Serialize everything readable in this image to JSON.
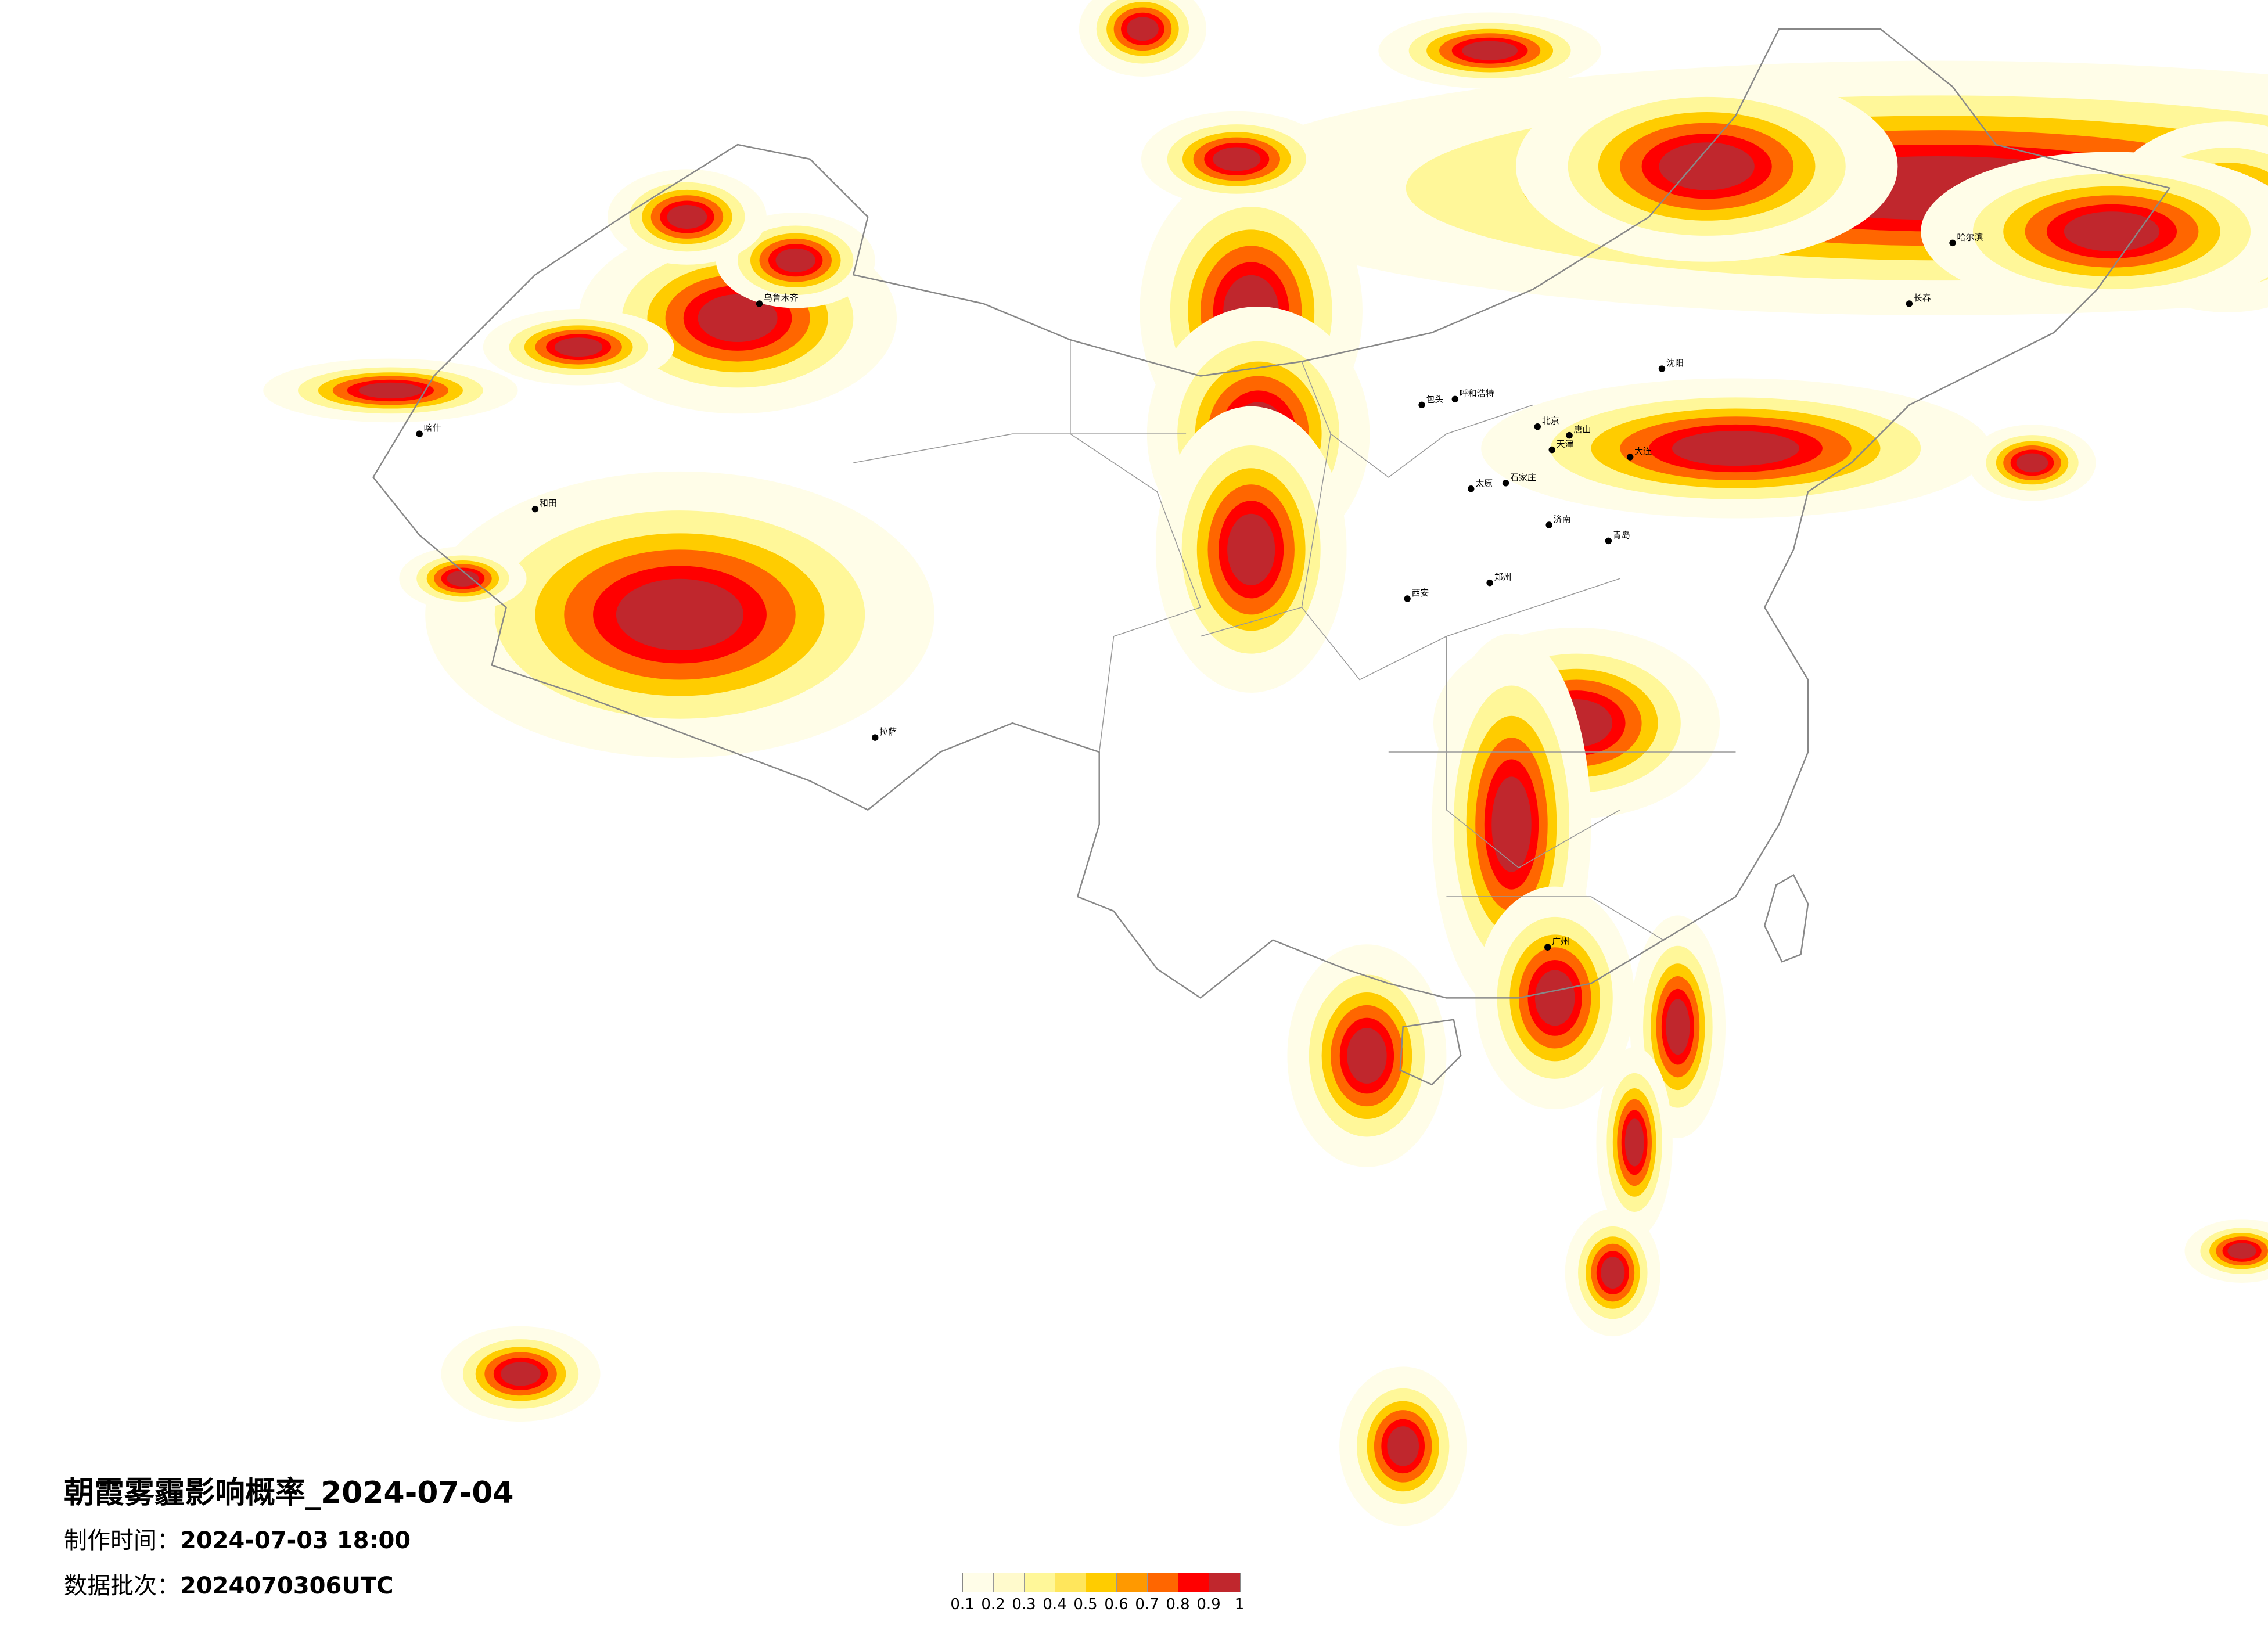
{
  "title": "朝霞雾霾影响概率_2024-07-04",
  "production_time": {
    "label": "制作时间：",
    "value": "2024-07-03 18:00"
  },
  "data_batch": {
    "label": "数据批次：",
    "value": "2024070306UTC"
  },
  "legend": {
    "ticks": [
      "0.1",
      "0.2",
      "0.3",
      "0.4",
      "0.5",
      "0.6",
      "0.7",
      "0.8",
      "0.9",
      "1"
    ],
    "colors": [
      "#FFFDE8",
      "#FFFACC",
      "#FFF799",
      "#FFE65C",
      "#FFCC00",
      "#FF9900",
      "#FF6600",
      "#FF0000",
      "#C0272D"
    ]
  },
  "cities": [
    {
      "name": "北京"
    },
    {
      "name": "天津"
    },
    {
      "name": "石家庄"
    },
    {
      "name": "呼和浩特"
    },
    {
      "name": "太原"
    },
    {
      "name": "济南"
    },
    {
      "name": "郑州"
    },
    {
      "name": "西安"
    },
    {
      "name": "大连"
    },
    {
      "name": "青岛"
    },
    {
      "name": "沈阳"
    },
    {
      "name": "唐山"
    },
    {
      "name": "包头"
    },
    {
      "name": "哈尔滨"
    },
    {
      "name": "长春"
    },
    {
      "name": "乌鲁木齐"
    },
    {
      "name": "拉萨"
    },
    {
      "name": "喀什"
    },
    {
      "name": "和田"
    },
    {
      "name": "广州"
    }
  ]
}
